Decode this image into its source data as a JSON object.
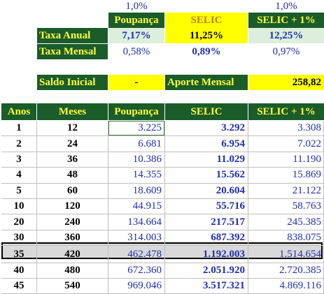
{
  "colors": {
    "header_bg": "#1a5c2a",
    "header_text": "#ffff33",
    "highlight_yellow": "#ffff00",
    "light_green": "#dcefdc",
    "value_blue": "#1f2fb4",
    "selected_row_bg": "#d9d9d9"
  },
  "top_row": {
    "poupanca": "1,0%",
    "selic_plus": "1,0%"
  },
  "rates": {
    "col_headers": [
      "Poupança",
      "SELIC",
      "SELIC + 1%"
    ],
    "annual_label": "Taxa Anual",
    "annual": [
      "7,17%",
      "11,25%",
      "12,25%"
    ],
    "monthly_label": "Taxa Mensal",
    "monthly": [
      "0,58%",
      "0,89%",
      "0,97%"
    ]
  },
  "inputs": {
    "saldo_label": "Saldo Inicial",
    "saldo_value": "-",
    "aporte_label": "Aporte Mensal",
    "aporte_value": "258,82"
  },
  "table": {
    "headers": [
      "Anos",
      "Meses",
      "Poupança",
      "SELIC",
      "SELIC + 1%"
    ],
    "rows": [
      [
        "1",
        "12",
        "3.225",
        "3.292",
        "3.308"
      ],
      [
        "2",
        "24",
        "6.681",
        "6.954",
        "7.022"
      ],
      [
        "3",
        "36",
        "10.386",
        "11.029",
        "11.190"
      ],
      [
        "4",
        "48",
        "14.355",
        "15.562",
        "15.869"
      ],
      [
        "5",
        "60",
        "18.609",
        "20.604",
        "21.122"
      ],
      [
        "10",
        "120",
        "44.915",
        "55.716",
        "58.763"
      ],
      [
        "20",
        "240",
        "134.664",
        "217.517",
        "245.385"
      ],
      [
        "30",
        "360",
        "314.003",
        "687.392",
        "838.075"
      ],
      [
        "35",
        "420",
        "462.478",
        "1.192.003",
        "1.514.654"
      ],
      [
        "40",
        "480",
        "672.360",
        "2.051.920",
        "2.720.385"
      ],
      [
        "45",
        "540",
        "969.046",
        "3.517.321",
        "4.869.116"
      ]
    ]
  }
}
